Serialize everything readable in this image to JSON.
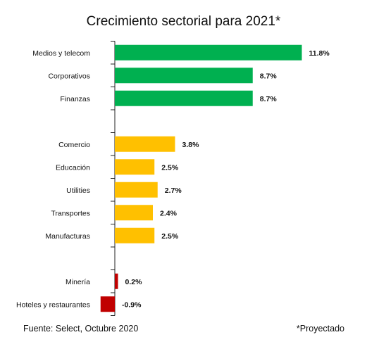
{
  "chart_data": {
    "type": "bar",
    "orientation": "horizontal",
    "title": "Crecimiento sectorial para 2021*",
    "categories": [
      "Medios y telecom",
      "Corporativos",
      "Finanzas",
      "",
      "Comercio",
      "Educación",
      "Utilities",
      "Transportes",
      "Manufacturas",
      "",
      "Minería",
      "Hoteles y restaurantes"
    ],
    "values": [
      11.8,
      8.7,
      8.7,
      null,
      3.8,
      2.5,
      2.7,
      2.4,
      2.5,
      null,
      0.2,
      -0.9
    ],
    "data_labels": [
      "11.8%",
      "8.7%",
      "8.7%",
      "",
      "3.8%",
      "2.5%",
      "2.7%",
      "2.4%",
      "2.5%",
      "",
      "0.2%",
      "-0.9%"
    ],
    "bar_colors": [
      "#00b050",
      "#00b050",
      "#00b050",
      "",
      "#ffc000",
      "#ffc000",
      "#ffc000",
      "#ffc000",
      "#ffc000",
      "",
      "#c00000",
      "#c00000"
    ],
    "xlim": [
      -0.9,
      11.8
    ],
    "grid": false,
    "legend": "none"
  },
  "footer": {
    "source": "Fuente: Select, Octubre 2020",
    "note": "*Proyectado"
  }
}
